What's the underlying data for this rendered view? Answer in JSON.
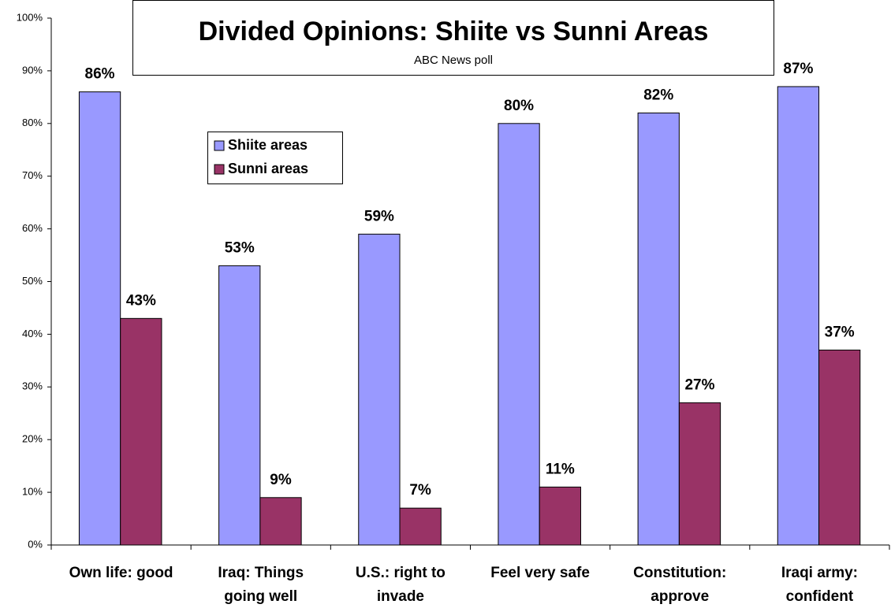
{
  "chart_data": {
    "type": "bar",
    "title": "Divided Opinions: Shiite vs Sunni Areas",
    "subtitle": "ABC News poll",
    "categories": [
      [
        "Own life: good"
      ],
      [
        "Iraq: Things",
        "going well"
      ],
      [
        "U.S.: right to",
        "invade"
      ],
      [
        "Feel very safe"
      ],
      [
        "Constitution:",
        "approve"
      ],
      [
        "Iraqi army:",
        "confident"
      ]
    ],
    "series": [
      {
        "name": "Shiite areas",
        "color": "#9999ff",
        "values": [
          86,
          53,
          59,
          80,
          82,
          87
        ],
        "value_labels": [
          "86%",
          "53%",
          "59%",
          "80%",
          "82%",
          "87%"
        ]
      },
      {
        "name": "Sunni areas",
        "color": "#993366",
        "values": [
          43,
          9,
          7,
          11,
          27,
          37
        ],
        "value_labels": [
          "43%",
          "9%",
          "7%",
          "11%",
          "27%",
          "37%"
        ]
      }
    ],
    "ylim": [
      0,
      100
    ],
    "yticks": [
      {
        "value": 0,
        "label": "0%"
      },
      {
        "value": 10,
        "label": "10%"
      },
      {
        "value": 20,
        "label": "20%"
      },
      {
        "value": 30,
        "label": "30%"
      },
      {
        "value": 40,
        "label": "40%"
      },
      {
        "value": 50,
        "label": "50%"
      },
      {
        "value": 60,
        "label": "60%"
      },
      {
        "value": 70,
        "label": "70%"
      },
      {
        "value": 80,
        "label": "80%"
      },
      {
        "value": 90,
        "label": "90%"
      },
      {
        "value": 100,
        "label": "100%"
      }
    ],
    "grid": false,
    "legend": "upper-left"
  }
}
